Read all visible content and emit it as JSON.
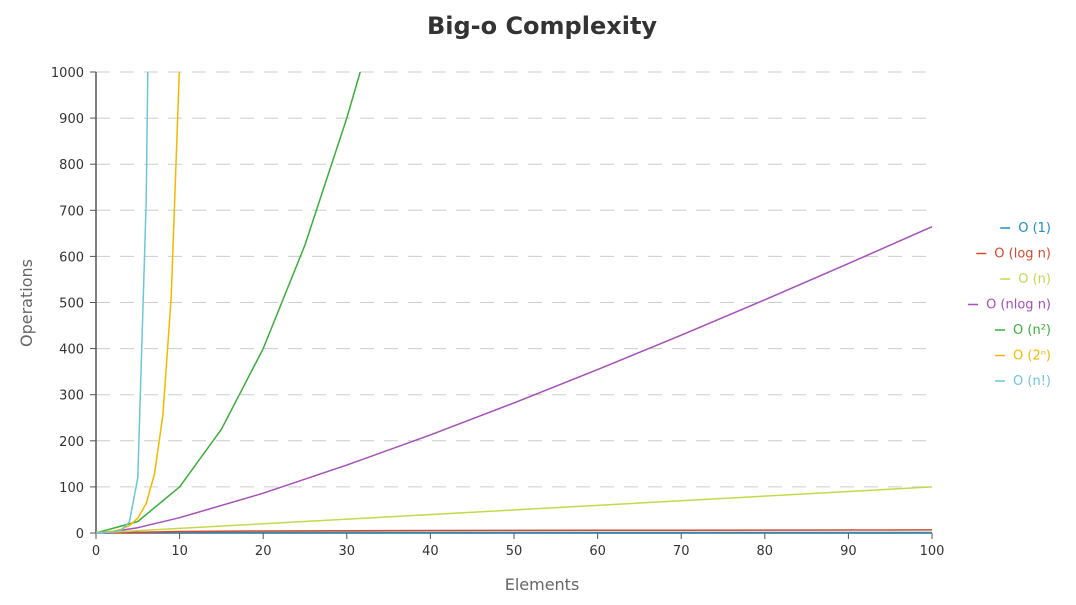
{
  "chart_data": {
    "type": "line",
    "title": "Big-o Complexity",
    "xlabel": "Elements",
    "ylabel": "Operations",
    "xlim": [
      0,
      100
    ],
    "ylim": [
      0,
      1000
    ],
    "xticks": [
      0,
      10,
      20,
      30,
      40,
      50,
      60,
      70,
      80,
      90,
      100
    ],
    "yticks": [
      0,
      100,
      200,
      300,
      400,
      500,
      600,
      700,
      800,
      900,
      1000
    ],
    "grid": "horizontal-dashed",
    "legend_position": "right",
    "series": [
      {
        "name": "O (1)",
        "color": "#1f8fc4",
        "x": [
          0,
          100
        ],
        "y": [
          1,
          1
        ]
      },
      {
        "name": "O (log n)",
        "color": "#d64a2a",
        "x": [
          1,
          10,
          20,
          30,
          40,
          50,
          60,
          70,
          80,
          90,
          100
        ],
        "y": [
          0,
          3.32,
          4.32,
          4.91,
          5.32,
          5.64,
          5.91,
          6.13,
          6.32,
          6.49,
          6.64
        ]
      },
      {
        "name": "O (n)",
        "color": "#c5d84b",
        "x": [
          0,
          100
        ],
        "y": [
          0,
          100
        ]
      },
      {
        "name": "O (nlog n)",
        "color": "#a54fb9",
        "x": [
          1,
          5,
          10,
          20,
          30,
          40,
          50,
          60,
          70,
          80,
          90,
          100
        ],
        "y": [
          0,
          11.6,
          33.2,
          86.4,
          147.2,
          212.9,
          282.2,
          354.4,
          429.1,
          505.8,
          584.3,
          664.4
        ]
      },
      {
        "name": "O (n²)",
        "color": "#3aae3a",
        "x": [
          0,
          5,
          10,
          15,
          20,
          25,
          30,
          31.6
        ],
        "y": [
          0,
          25,
          100,
          225,
          400,
          625,
          900,
          1000
        ]
      },
      {
        "name": "O (2ⁿ)",
        "color": "#f5b800",
        "x": [
          0,
          1,
          2,
          3,
          4,
          5,
          6,
          7,
          8,
          9,
          9.97
        ],
        "y": [
          1,
          2,
          4,
          8,
          16,
          32,
          64,
          128,
          256,
          512,
          1000
        ]
      },
      {
        "name": "O (n!)",
        "color": "#6cc6d8",
        "x": [
          0,
          1,
          2,
          3,
          4,
          5,
          6,
          6.2
        ],
        "y": [
          1,
          1,
          2,
          6,
          24,
          120,
          720,
          1000
        ]
      }
    ]
  }
}
